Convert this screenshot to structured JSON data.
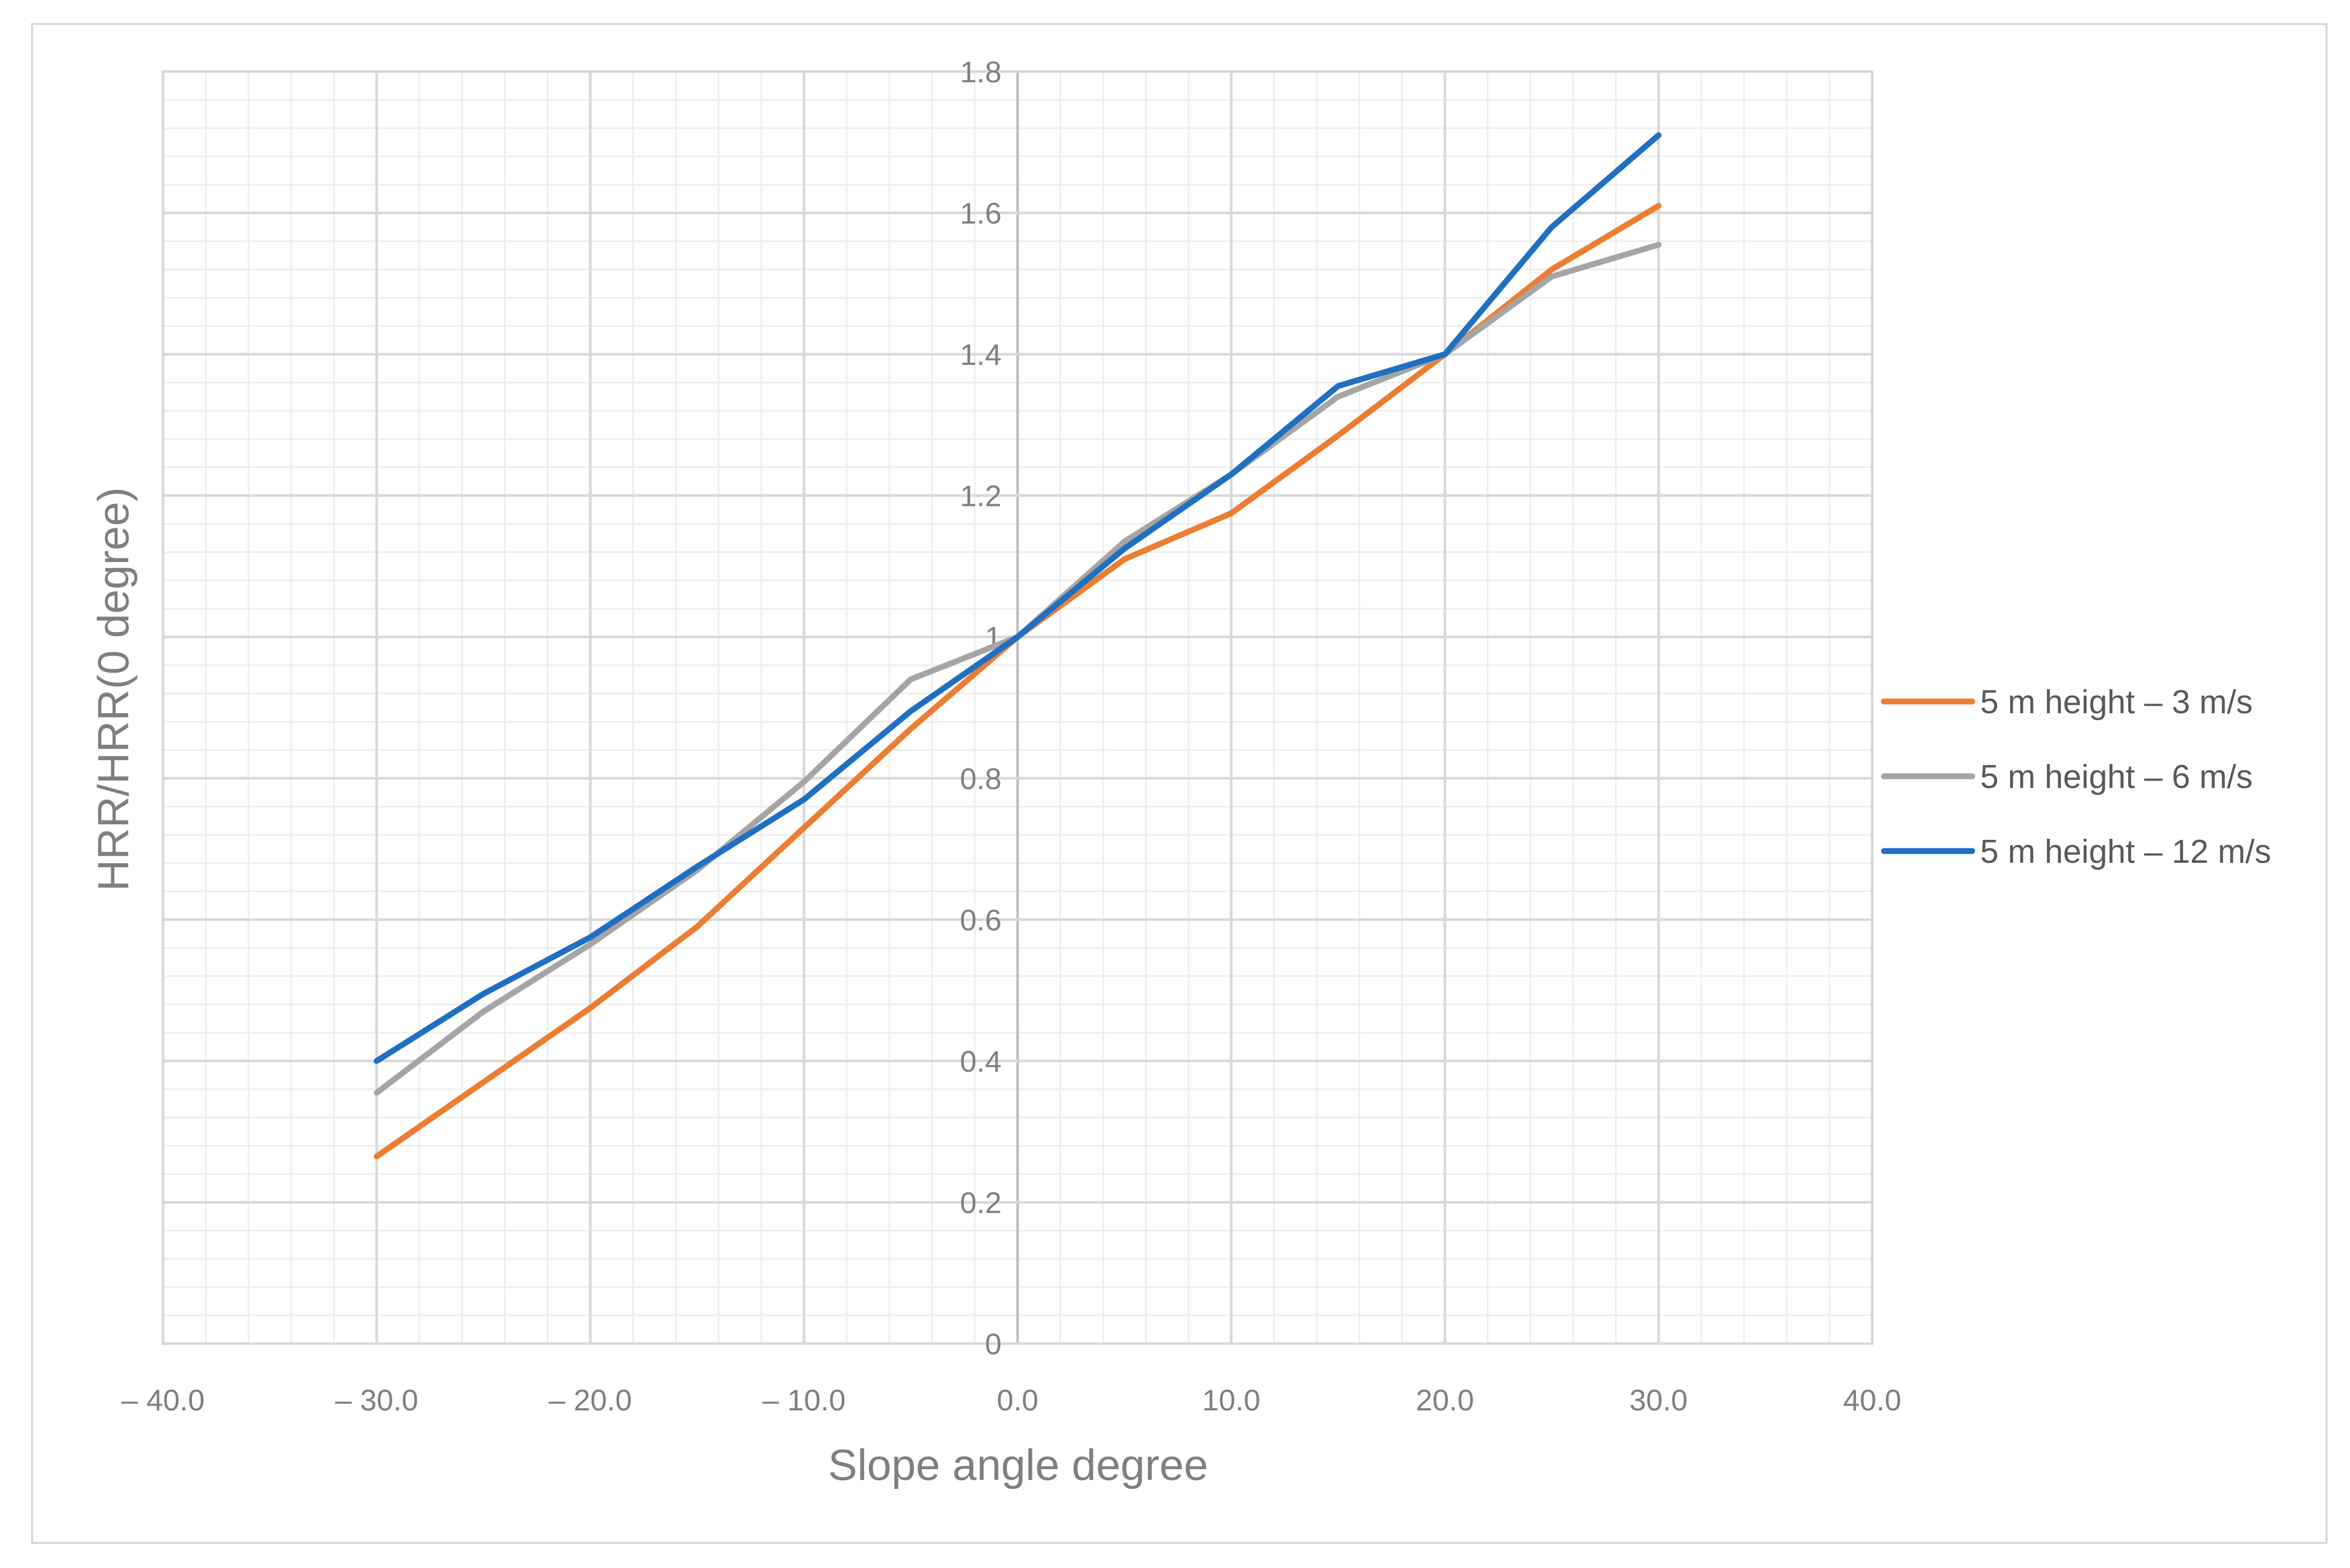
{
  "chart_data": {
    "type": "line",
    "title": "",
    "xlabel": "Slope angle degree",
    "ylabel": "HRR/HRR(0 degree)",
    "xlim": [
      -40,
      40
    ],
    "ylim": [
      0,
      1.8
    ],
    "x_ticks": [
      -40,
      -30,
      -20,
      -10,
      0,
      10,
      20,
      30,
      40
    ],
    "x_tick_labels": [
      "– 40.0",
      "– 30.0",
      "– 20.0",
      "– 10.0",
      "0.0",
      "10.0",
      "20.0",
      "30.0",
      "40.0"
    ],
    "y_ticks": [
      0,
      0.2,
      0.4,
      0.6,
      0.8,
      1,
      1.2,
      1.4,
      1.6,
      1.8
    ],
    "y_tick_labels": [
      "0",
      "0.2",
      "0.4",
      "0.6",
      "0.8",
      "1",
      "1.2",
      "1.4",
      "1.6",
      "1.8"
    ],
    "grid": true,
    "legend_position": "right",
    "x": [
      -30,
      -25,
      -20,
      -15,
      -10,
      -5,
      0,
      5,
      10,
      15,
      20,
      25,
      30
    ],
    "series": [
      {
        "name": "5 m height – 3 m/s",
        "color": "#ed7d31",
        "values": [
          0.265,
          0.37,
          0.475,
          0.59,
          0.73,
          0.87,
          1.0,
          1.11,
          1.175,
          1.285,
          1.4,
          1.52,
          1.61
        ]
      },
      {
        "name": "5 m height – 6 m/s",
        "color": "#a5a5a5",
        "values": [
          0.355,
          0.47,
          0.565,
          0.67,
          0.795,
          0.94,
          1.0,
          1.135,
          1.23,
          1.34,
          1.4,
          1.51,
          1.555
        ]
      },
      {
        "name": "5 m height – 12 m/s",
        "color": "#1f6fc2",
        "values": [
          0.4,
          0.495,
          0.575,
          0.675,
          0.77,
          0.895,
          1.0,
          1.125,
          1.23,
          1.355,
          1.4,
          1.58,
          1.71
        ]
      }
    ]
  }
}
